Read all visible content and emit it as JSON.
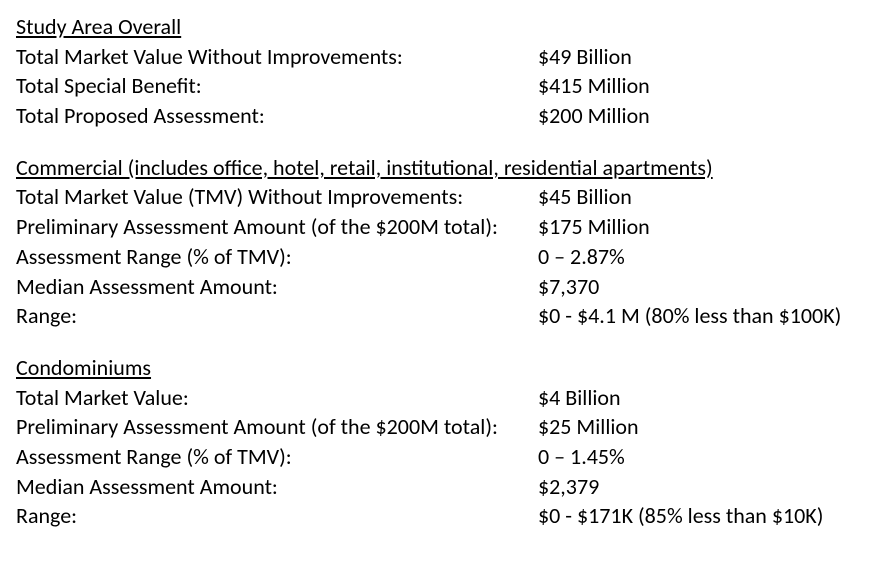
{
  "sections": [
    {
      "title": "Study Area Overall",
      "rows": [
        {
          "label": "Total Market Value Without Improvements:",
          "value": "$49 Billion"
        },
        {
          "label": "Total Special Benefit:",
          "value": "$415 Million"
        },
        {
          "label": "Total Proposed Assessment:",
          "value": "$200 Million"
        }
      ]
    },
    {
      "title": "Commercial (includes office, hotel, retail, institutional, residential apartments)",
      "rows": [
        {
          "label": "Total Market Value (TMV) Without Improvements:",
          "value": "$45 Billion"
        },
        {
          "label": "Preliminary Assessment Amount (of the $200M total):",
          "value": "$175 Million"
        },
        {
          "label": "Assessment Range (% of TMV):",
          "value": "0 – 2.87%"
        },
        {
          "label": "Median Assessment Amount:",
          "value": "$7,370"
        },
        {
          "label": "Range:",
          "value": "$0 - $4.1 M (80% less than $100K)"
        }
      ]
    },
    {
      "title": "Condominiums",
      "rows": [
        {
          "label": "Total Market Value:",
          "value": "$4 Billion"
        },
        {
          "label": "Preliminary Assessment Amount (of the $200M total):",
          "value": "$25 Million"
        },
        {
          "label": "Assessment Range (% of TMV):",
          "value": "0 – 1.45%"
        },
        {
          "label": "Median Assessment Amount:",
          "value": "$2,379"
        },
        {
          "label": "Range:",
          "value": "$0 - $171K (85% less than $10K)"
        }
      ]
    }
  ]
}
